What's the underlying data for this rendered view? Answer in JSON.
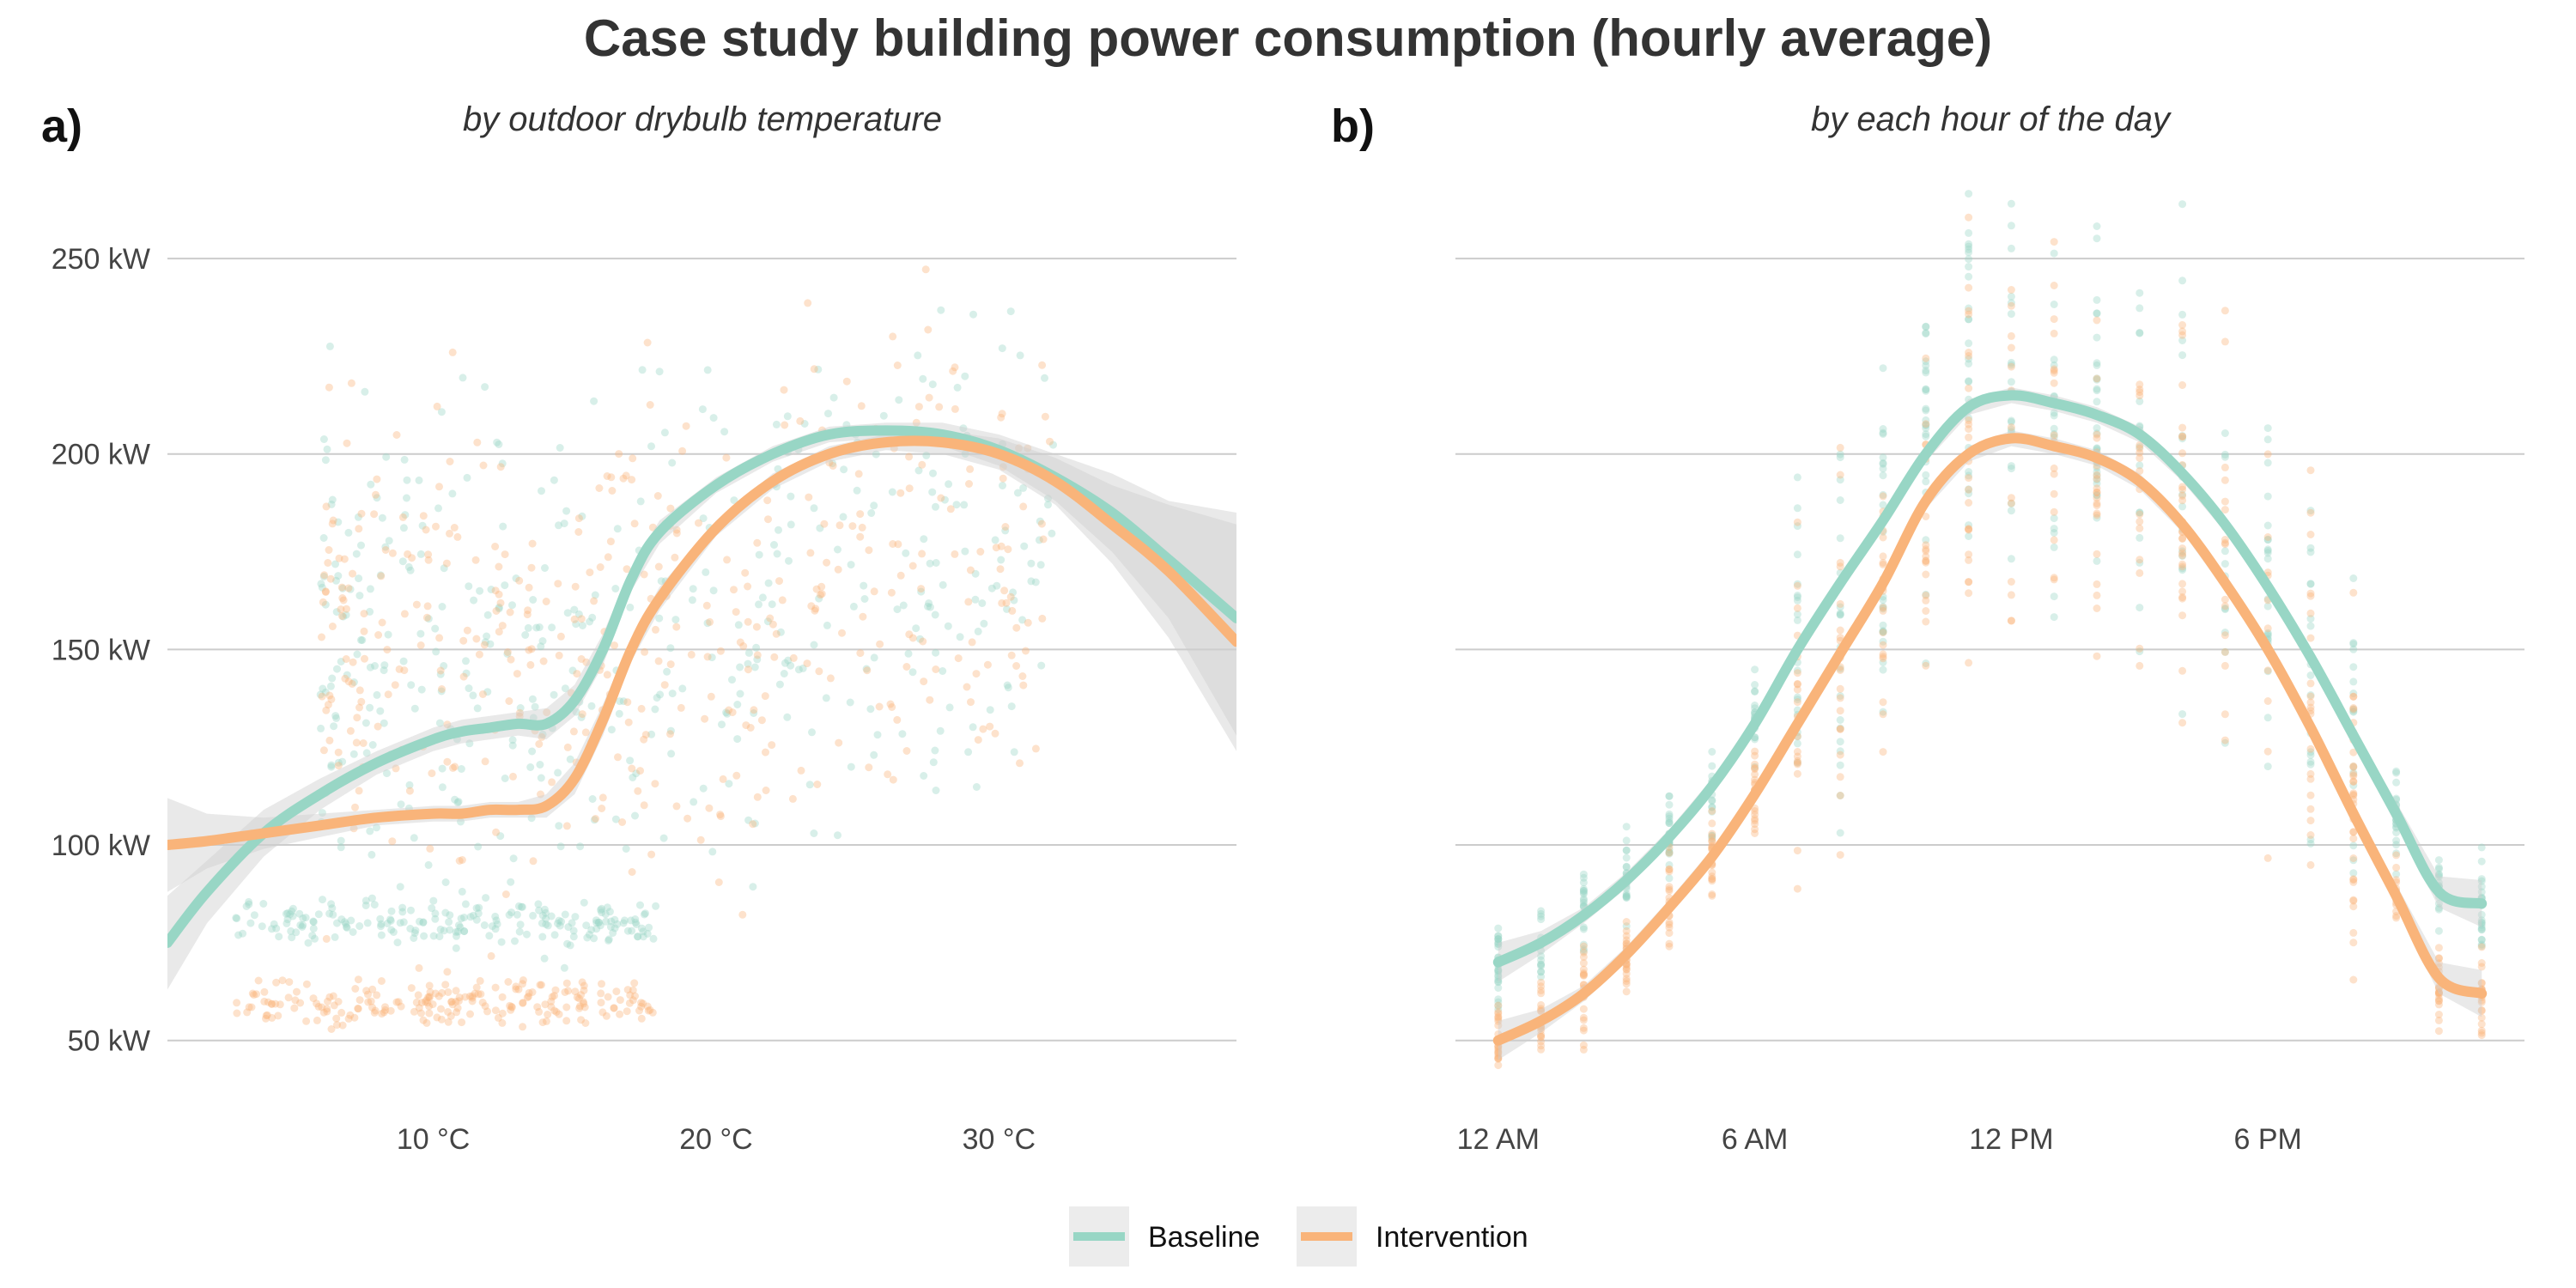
{
  "title": "Case study building power consumption (hourly average)",
  "colors": {
    "Baseline": "#98d6c5",
    "Intervention": "#f9b47a",
    "ribbon": "#cfcfcf"
  },
  "legend": [
    "Baseline",
    "Intervention"
  ],
  "chart_data": [
    {
      "type": "line",
      "panel_label": "a)",
      "subtitle": "by outdoor drybulb temperature",
      "xlabel": "",
      "ylabel": "",
      "x_unit": "°C",
      "xlim": [
        0.6,
        38.4
      ],
      "ylim": [
        35,
        270
      ],
      "x_ticks": [
        10,
        20,
        30
      ],
      "x_tick_labels": [
        "10 °C",
        "20 °C",
        "30 °C"
      ],
      "y_ticks": [
        50,
        100,
        150,
        200,
        250
      ],
      "y_tick_labels": [
        "50 kW",
        "100 kW",
        "150 kW",
        "200 kW",
        "250 kW"
      ],
      "grid": "horizontal",
      "legend_position": "bottom",
      "series": [
        {
          "name": "Baseline",
          "x": [
            0.6,
            2,
            4,
            6,
            8,
            10,
            11,
            12,
            13,
            14,
            15,
            16,
            17,
            18,
            20,
            22,
            24,
            26,
            28,
            30,
            32,
            34,
            36,
            38.4
          ],
          "y": [
            75,
            88,
            103,
            113,
            121,
            127,
            129,
            130,
            131,
            131,
            137,
            150,
            168,
            180,
            192,
            200,
            205,
            206,
            205,
            201,
            194,
            185,
            173,
            158
          ],
          "ci_low": [
            63,
            80,
            97,
            109,
            118,
            124,
            126,
            127,
            128,
            127,
            133,
            146,
            165,
            177,
            190,
            198,
            203,
            204,
            202,
            197,
            188,
            175,
            158,
            128
          ],
          "ci_high": [
            87,
            96,
            109,
            117,
            124,
            130,
            132,
            133,
            134,
            135,
            141,
            154,
            171,
            183,
            194,
            202,
            207,
            208,
            208,
            205,
            200,
            195,
            188,
            185
          ]
        },
        {
          "name": "Intervention",
          "x": [
            0.6,
            2,
            4,
            6,
            8,
            10,
            11,
            12,
            13,
            14,
            15,
            16,
            17,
            18,
            20,
            22,
            24,
            26,
            28,
            30,
            32,
            34,
            36,
            38.4
          ],
          "y": [
            100,
            101,
            103,
            105,
            107,
            108,
            108,
            109,
            109,
            110,
            117,
            132,
            150,
            163,
            181,
            193,
            200,
            203,
            203,
            200,
            193,
            182,
            170,
            152
          ],
          "ci_low": [
            88,
            94,
            99,
            102,
            105,
            106,
            106,
            107,
            107,
            107,
            113,
            128,
            147,
            160,
            179,
            191,
            198,
            201,
            200,
            196,
            187,
            172,
            153,
            124
          ],
          "ci_high": [
            112,
            108,
            107,
            108,
            109,
            110,
            110,
            111,
            111,
            113,
            121,
            136,
            153,
            166,
            183,
            195,
            202,
            205,
            206,
            204,
            199,
            192,
            187,
            182
          ]
        }
      ]
    },
    {
      "type": "line",
      "panel_label": "b)",
      "subtitle": "by each hour of the day",
      "xlabel": "",
      "ylabel": "",
      "x_unit": "hour of day",
      "xlim": [
        -1,
        24
      ],
      "ylim": [
        35,
        270
      ],
      "x_ticks": [
        0,
        6,
        12,
        18
      ],
      "x_tick_labels": [
        "12 AM",
        "6 AM",
        "12 PM",
        "6 PM"
      ],
      "y_ticks": [
        50,
        100,
        150,
        200,
        250
      ],
      "grid": "horizontal",
      "series": [
        {
          "name": "Baseline",
          "x": [
            0,
            1,
            2,
            3,
            4,
            5,
            6,
            7,
            8,
            9,
            10,
            11,
            12,
            13,
            14,
            15,
            16,
            17,
            18,
            19,
            20,
            21,
            22,
            23
          ],
          "y": [
            70,
            75,
            82,
            91,
            102,
            115,
            131,
            150,
            167,
            183,
            200,
            212,
            215,
            213,
            210,
            205,
            195,
            182,
            166,
            148,
            128,
            108,
            88,
            85
          ],
          "ci_low": [
            65,
            72,
            80,
            89,
            100,
            113,
            129,
            148,
            165,
            181,
            198,
            210,
            213,
            211,
            208,
            203,
            193,
            180,
            164,
            146,
            126,
            105,
            84,
            79
          ],
          "ci_high": [
            75,
            78,
            84,
            93,
            104,
            117,
            133,
            152,
            169,
            185,
            202,
            214,
            217,
            215,
            212,
            207,
            197,
            184,
            168,
            150,
            130,
            111,
            92,
            91
          ]
        },
        {
          "name": "Intervention",
          "x": [
            0,
            1,
            2,
            3,
            4,
            5,
            6,
            7,
            8,
            9,
            10,
            11,
            12,
            13,
            14,
            15,
            16,
            17,
            18,
            19,
            20,
            21,
            22,
            23
          ],
          "y": [
            50,
            55,
            62,
            72,
            84,
            97,
            113,
            131,
            149,
            167,
            188,
            200,
            204,
            202,
            199,
            193,
            182,
            167,
            150,
            130,
            108,
            87,
            66,
            62
          ],
          "ci_low": [
            45,
            52,
            60,
            70,
            82,
            95,
            111,
            129,
            147,
            165,
            186,
            198,
            202,
            200,
            197,
            191,
            180,
            165,
            148,
            128,
            106,
            84,
            62,
            56
          ],
          "ci_high": [
            55,
            58,
            64,
            74,
            86,
            99,
            115,
            133,
            151,
            169,
            190,
            202,
            206,
            204,
            201,
            195,
            184,
            169,
            152,
            132,
            110,
            90,
            70,
            68
          ]
        }
      ]
    }
  ]
}
